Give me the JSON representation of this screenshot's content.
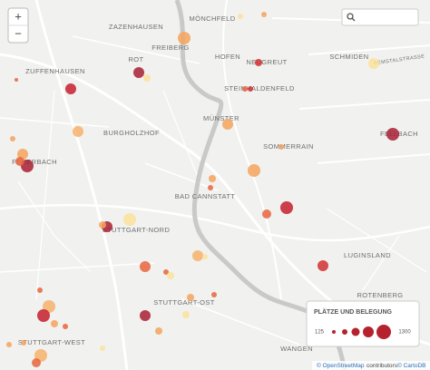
{
  "map": {
    "places": [
      "ZAZENHAUSEN",
      "MÖNCHFELD",
      "FREIBERG",
      "ROT",
      "ZUFFENHAUSEN",
      "HOFEN",
      "NEUGREUT",
      "SCHMIDEN",
      "STEINHALDENFELD",
      "BURGHOLZHOF",
      "MÜNSTER",
      "FEUERBACH",
      "SOMMERRAIN",
      "FELLBACH",
      "BAD CANNSTATT",
      "STUTTGART-NORD",
      "LUGINSLAND",
      "STUTTGART-OST",
      "ROTENBERG",
      "STUTTGART-WEST",
      "WANGEN"
    ],
    "streets": [
      "REMSTALSTRASSE"
    ],
    "zoom": {
      "in": "+",
      "out": "−"
    },
    "legend": {
      "title": "PLÄTZE UND BELEGUNG",
      "min": 125,
      "max": 1300
    },
    "attribution": {
      "osm": "© OpenStreetMap",
      "osm_suffix": "contributors",
      "carto": "© CartoDB"
    }
  }
}
